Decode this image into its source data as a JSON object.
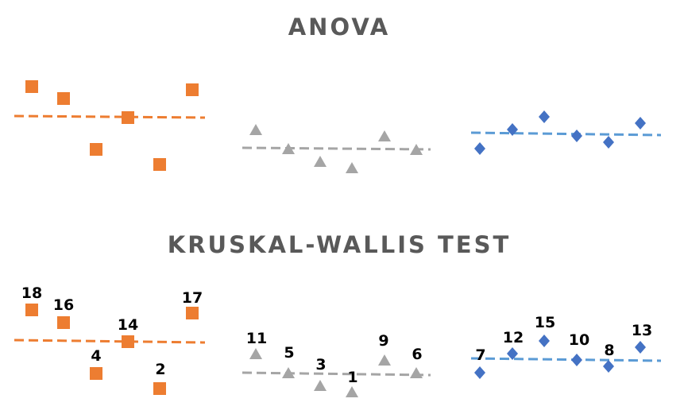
{
  "titles": {
    "anova": "ANOVA",
    "kruskal_wallis": "KRUSKAL-WALLIS TEST"
  },
  "ranks": {
    "orange_group": [
      18,
      16,
      4,
      14,
      2,
      17
    ],
    "gray_group": [
      11,
      5,
      3,
      1,
      9,
      6
    ],
    "blue_group": [
      7,
      12,
      15,
      10,
      8,
      13
    ]
  }
}
